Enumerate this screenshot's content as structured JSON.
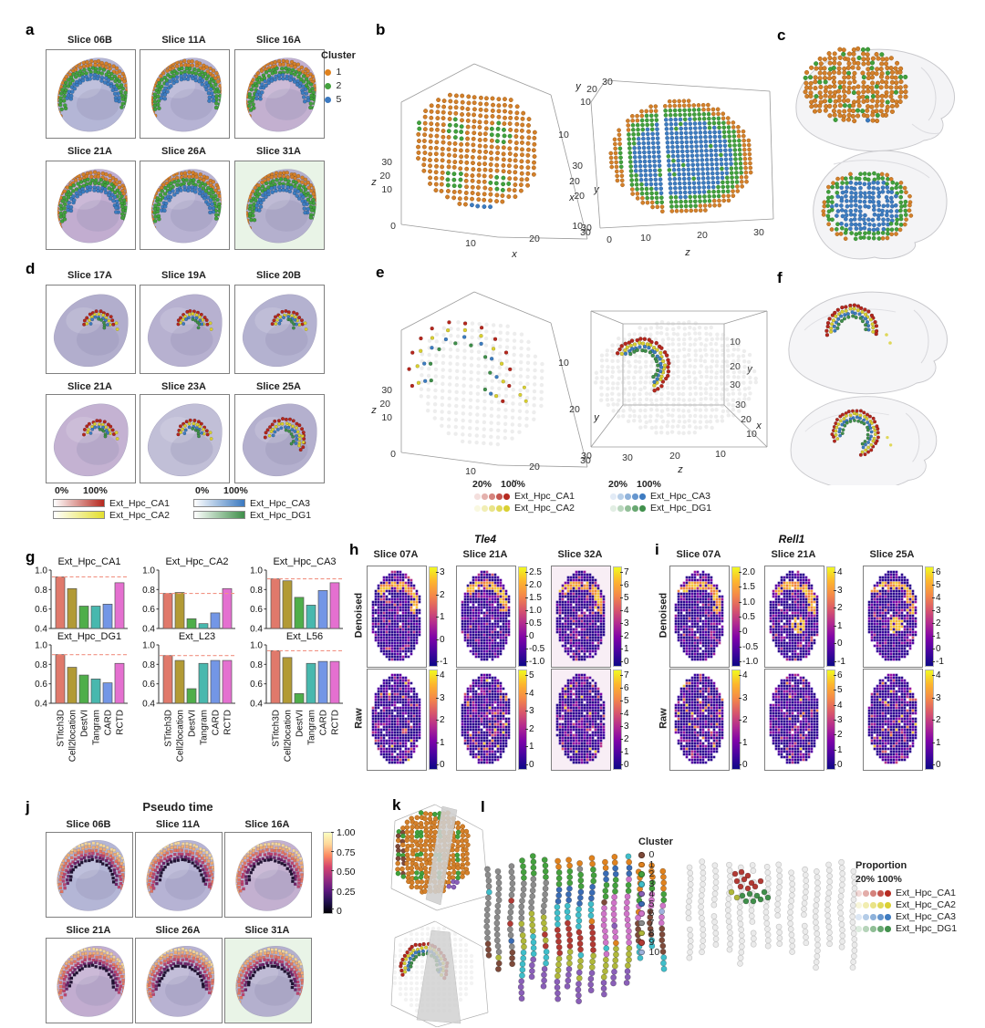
{
  "panel_labels": {
    "a": "a",
    "b": "b",
    "c": "c",
    "d": "d",
    "e": "e",
    "f": "f",
    "g": "g",
    "h": "h",
    "i": "i",
    "j": "j",
    "k": "k",
    "l": "l"
  },
  "panel_a": {
    "slices": [
      "Slice 06B",
      "Slice 11A",
      "Slice 16A",
      "Slice 21A",
      "Slice 26A",
      "Slice 31A"
    ],
    "legend": {
      "title": "Cluster",
      "items": [
        {
          "label": "1",
          "color": "#e0821e"
        },
        {
          "label": "2",
          "color": "#44a13e"
        },
        {
          "label": "5",
          "color": "#3b79c0"
        }
      ]
    }
  },
  "panel_b": {
    "plots": [
      {
        "xlabel": "x",
        "ylabel": "y",
        "zlabel": "z",
        "xticks": [
          "10",
          "20",
          "30"
        ],
        "yticks": [
          "10",
          "20",
          "30"
        ],
        "zticks": [
          "30",
          "20",
          "10",
          "0"
        ]
      },
      {
        "xlabel": "x",
        "ylabel": "y",
        "zlabel": "z",
        "xticks": [
          "30",
          "20",
          "10"
        ],
        "yticks": [
          "10",
          "20",
          "30"
        ],
        "zticks": [
          "0",
          "10",
          "20",
          "30"
        ]
      }
    ]
  },
  "panel_d": {
    "slices": [
      "Slice 17A",
      "Slice 19A",
      "Slice 20B",
      "Slice 21A",
      "Slice 23A",
      "Slice 25A"
    ],
    "legend": {
      "scale_min": "0%",
      "scale_max": "100%",
      "groups": [
        [
          {
            "label": "Ext_Hpc_CA1",
            "color": "#b5271d"
          },
          {
            "label": "Ext_Hpc_CA2",
            "color": "#e3df2e"
          }
        ],
        [
          {
            "label": "Ext_Hpc_CA3",
            "color": "#3b79c0"
          },
          {
            "label": "Ext_Hpc_DG1",
            "color": "#3f8f4a"
          }
        ]
      ]
    }
  },
  "panel_e": {
    "plots": [
      {
        "xlabel": "x",
        "ylabel": "y",
        "zlabel": "z",
        "xticks": [
          "10",
          "20",
          "30"
        ],
        "yticks": [
          "10",
          "20",
          "30"
        ],
        "zticks": [
          "30",
          "20",
          "10",
          "0"
        ]
      },
      {
        "xlabel": "x",
        "ylabel": "y",
        "zlabel": "z",
        "xticks": [
          "30",
          "20",
          "10"
        ],
        "yticks": [
          "10",
          "20",
          "30"
        ],
        "zticks": [
          "30",
          "20",
          "10"
        ]
      }
    ],
    "legend": {
      "scale_min": "20%",
      "scale_max": "100%",
      "groups": [
        [
          {
            "label": "Ext_Hpc_CA1",
            "color": "#b5271d"
          },
          {
            "label": "Ext_Hpc_CA2",
            "color": "#d9cf30"
          }
        ],
        [
          {
            "label": "Ext_Hpc_CA3",
            "color": "#3b79c0"
          },
          {
            "label": "Ext_Hpc_DG1",
            "color": "#3f8f4a"
          }
        ]
      ]
    }
  },
  "panel_g": {
    "methods": [
      "STitch3D",
      "Cell2location",
      "DestVI",
      "Tangram",
      "CARD",
      "RCTD"
    ],
    "colors": [
      "#e0796b",
      "#b29a35",
      "#4fae4a",
      "#48b8ae",
      "#7396e6",
      "#e470d0"
    ],
    "yticks": [
      "1.0",
      "0.8",
      "0.6",
      "0.4"
    ],
    "dash_color": "#f19384"
  },
  "chart_data": [
    {
      "type": "bar",
      "title": "Ext_Hpc_CA1",
      "categories": [
        "STitch3D",
        "Cell2location",
        "DestVI",
        "Tangram",
        "CARD",
        "RCTD"
      ],
      "values": [
        0.93,
        0.81,
        0.63,
        0.63,
        0.65,
        0.87
      ],
      "dashed_line": 0.93,
      "ylim": [
        0.4,
        1.0
      ]
    },
    {
      "type": "bar",
      "title": "Ext_Hpc_CA2",
      "categories": [
        "STitch3D",
        "Cell2location",
        "DestVI",
        "Tangram",
        "CARD",
        "RCTD"
      ],
      "values": [
        0.76,
        0.77,
        0.5,
        0.45,
        0.56,
        0.81
      ],
      "dashed_line": 0.76,
      "ylim": [
        0.4,
        1.0
      ]
    },
    {
      "type": "bar",
      "title": "Ext_Hpc_CA3",
      "categories": [
        "STitch3D",
        "Cell2location",
        "DestVI",
        "Tangram",
        "CARD",
        "RCTD"
      ],
      "values": [
        0.91,
        0.89,
        0.72,
        0.64,
        0.79,
        0.87
      ],
      "dashed_line": 0.91,
      "ylim": [
        0.4,
        1.0
      ]
    },
    {
      "type": "bar",
      "title": "Ext_Hpc_DG1",
      "categories": [
        "STitch3D",
        "Cell2location",
        "DestVI",
        "Tangram",
        "CARD",
        "RCTD"
      ],
      "values": [
        0.9,
        0.77,
        0.69,
        0.65,
        0.61,
        0.81
      ],
      "dashed_line": 0.9,
      "ylim": [
        0.4,
        1.0
      ]
    },
    {
      "type": "bar",
      "title": "Ext_L23",
      "categories": [
        "STitch3D",
        "Cell2location",
        "DestVI",
        "Tangram",
        "CARD",
        "RCTD"
      ],
      "values": [
        0.89,
        0.84,
        0.55,
        0.81,
        0.84,
        0.84
      ],
      "dashed_line": 0.89,
      "ylim": [
        0.4,
        1.0
      ]
    },
    {
      "type": "bar",
      "title": "Ext_L56",
      "categories": [
        "STitch3D",
        "Cell2location",
        "DestVI",
        "Tangram",
        "CARD",
        "RCTD"
      ],
      "values": [
        0.94,
        0.87,
        0.5,
        0.81,
        0.83,
        0.83
      ],
      "dashed_line": 0.94,
      "ylim": [
        0.4,
        1.0
      ]
    }
  ],
  "panel_h": {
    "gene": "Tle4",
    "rows": [
      "Denoised",
      "Raw"
    ],
    "slices": [
      "Slice 07A",
      "Slice 21A",
      "Slice 32A"
    ],
    "colorbars": {
      "denoised": [
        [
          "3",
          "2",
          "1",
          "0",
          "-1"
        ],
        [
          "2.5",
          "2.0",
          "1.5",
          "1.0",
          "0.5",
          "0",
          "-0.5",
          "-1.0"
        ],
        [
          "7",
          "6",
          "5",
          "4",
          "3",
          "2",
          "1",
          "0"
        ]
      ],
      "raw": [
        [
          "4",
          "3",
          "2",
          "1",
          "0"
        ],
        [
          "5",
          "4",
          "3",
          "2",
          "1",
          "0"
        ],
        [
          "7",
          "6",
          "5",
          "4",
          "3",
          "2",
          "1",
          "0"
        ]
      ]
    }
  },
  "panel_i": {
    "gene": "Rell1",
    "rows": [
      "Denoised",
      "Raw"
    ],
    "slices": [
      "Slice 07A",
      "Slice 21A",
      "Slice 25A"
    ],
    "colorbars": {
      "denoised": [
        [
          "2.0",
          "1.5",
          "1.0",
          "0.5",
          "0",
          "-0.5",
          "-1.0"
        ],
        [
          "4",
          "3",
          "2",
          "1",
          "0",
          "-1"
        ],
        [
          "6",
          "5",
          "4",
          "3",
          "2",
          "1",
          "0",
          "-1"
        ]
      ],
      "raw": [
        [
          "4",
          "3",
          "2",
          "1",
          "0"
        ],
        [
          "6",
          "5",
          "4",
          "3",
          "2",
          "1",
          "0"
        ],
        [
          "4",
          "3",
          "2",
          "1",
          "0"
        ]
      ]
    }
  },
  "panel_j": {
    "title": "Pseudo time",
    "slices": [
      "Slice 06B",
      "Slice 11A",
      "Slice 16A",
      "Slice 21A",
      "Slice 26A",
      "Slice 31A"
    ],
    "colorbar_ticks": [
      "1.00",
      "0.75",
      "0.50",
      "0.25",
      "0"
    ]
  },
  "panel_l": {
    "cluster_legend": {
      "title": "Cluster",
      "items": [
        {
          "label": "0",
          "color": "#7e4a3a"
        },
        {
          "label": "1",
          "color": "#e0821e"
        },
        {
          "label": "2",
          "color": "#44a13e"
        },
        {
          "label": "3",
          "color": "#3fbeca"
        },
        {
          "label": "4",
          "color": "#8a5fb8"
        },
        {
          "label": "5",
          "color": "#3a6cb4"
        },
        {
          "label": "6",
          "color": "#cf74c8"
        },
        {
          "label": "7",
          "color": "#8c8c8c"
        },
        {
          "label": "8",
          "color": "#b0b83a"
        },
        {
          "label": "9",
          "color": "#b23a34"
        },
        {
          "label": "10",
          "color": "#9fb2dc"
        }
      ]
    },
    "proportion_legend": {
      "title": "Proportion",
      "scale_min": "20%",
      "scale_max": "100%",
      "items": [
        {
          "label": "Ext_Hpc_CA1",
          "color": "#b5271d"
        },
        {
          "label": "Ext_Hpc_CA2",
          "color": "#d9cf30"
        },
        {
          "label": "Ext_Hpc_CA3",
          "color": "#3b79c0"
        },
        {
          "label": "Ext_Hpc_DG1",
          "color": "#3f8f4a"
        }
      ]
    }
  },
  "palette": {
    "orange": "#d4802a",
    "orange_dk": "#9c5a14",
    "green": "#41a13c",
    "green_dk": "#2c7a2a",
    "blue": "#3c7cc0",
    "blue_dk": "#2a5a96",
    "red": "#b5271d",
    "yellow": "#d9cf30",
    "dgreen": "#3f8f4a",
    "plasma": [
      "#f0f921",
      "#fdb52e",
      "#f48849",
      "#d8576b",
      "#b12a90",
      "#7e03a8",
      "#46039f",
      "#0d0887"
    ],
    "magma_r": [
      "#fcfdbf",
      "#fed799",
      "#fc8961",
      "#d3436e",
      "#982d80",
      "#5f187f",
      "#221150",
      "#000004"
    ],
    "pseudo_rows": [
      "#f2d49a",
      "#eeab74",
      "#e07362",
      "#bb4470",
      "#6e2468",
      "#211233"
    ]
  }
}
